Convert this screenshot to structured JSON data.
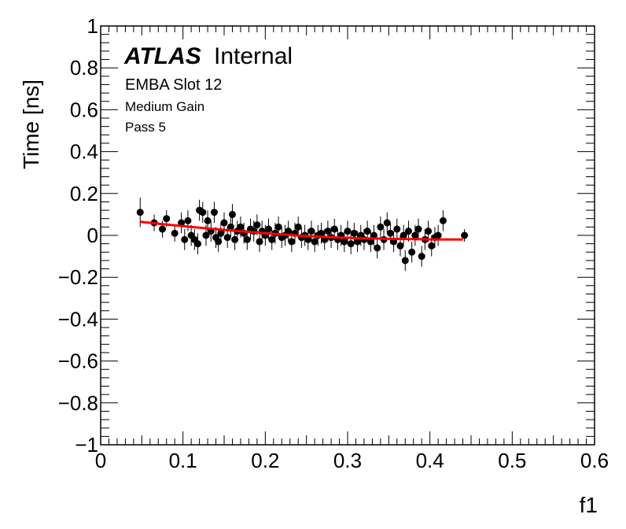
{
  "chart_data": {
    "type": "scatter",
    "title": "",
    "xlabel": "f1",
    "ylabel": "Time [ns]",
    "xlim": [
      0,
      0.6
    ],
    "ylim": [
      -1,
      1
    ],
    "xticks": [
      "0",
      "0.1",
      "0.2",
      "0.3",
      "0.4",
      "0.5",
      "0.6"
    ],
    "yticks": [
      "1",
      "0.8",
      "0.6",
      "0.4",
      "0.2",
      "0",
      "−0.2",
      "−0.4",
      "−0.6",
      "−0.8",
      "−1"
    ],
    "grid": false,
    "annotations": {
      "brand": "ATLAS",
      "status": "Internal",
      "line1": "EMBA Slot 12",
      "line2": "Medium Gain",
      "line3": "Pass 5"
    },
    "fit": {
      "color": "#ff0000",
      "x": [
        0.048,
        0.08,
        0.12,
        0.16,
        0.2,
        0.24,
        0.28,
        0.32,
        0.36,
        0.4,
        0.44
      ],
      "y": [
        0.065,
        0.052,
        0.037,
        0.023,
        0.01,
        -0.001,
        -0.009,
        -0.014,
        -0.017,
        -0.019,
        -0.02
      ]
    },
    "points": {
      "color": "#000000",
      "data": [
        [
          0.048,
          0.11,
          0.07
        ],
        [
          0.065,
          0.06,
          0.04
        ],
        [
          0.075,
          0.03,
          0.04
        ],
        [
          0.08,
          0.08,
          0.04
        ],
        [
          0.09,
          0.01,
          0.04
        ],
        [
          0.098,
          0.06,
          0.05
        ],
        [
          0.102,
          -0.02,
          0.05
        ],
        [
          0.106,
          0.07,
          0.05
        ],
        [
          0.11,
          0.0,
          0.05
        ],
        [
          0.114,
          -0.02,
          0.05
        ],
        [
          0.118,
          -0.04,
          0.05
        ],
        [
          0.12,
          0.12,
          0.05
        ],
        [
          0.124,
          0.11,
          0.05
        ],
        [
          0.128,
          0.0,
          0.05
        ],
        [
          0.13,
          0.07,
          0.05
        ],
        [
          0.134,
          0.02,
          0.05
        ],
        [
          0.138,
          0.11,
          0.05
        ],
        [
          0.14,
          -0.01,
          0.05
        ],
        [
          0.143,
          -0.03,
          0.05
        ],
        [
          0.146,
          0.01,
          0.05
        ],
        [
          0.15,
          0.06,
          0.05
        ],
        [
          0.154,
          -0.01,
          0.05
        ],
        [
          0.158,
          0.04,
          0.05
        ],
        [
          0.16,
          0.1,
          0.05
        ],
        [
          0.163,
          -0.02,
          0.05
        ],
        [
          0.166,
          0.02,
          0.05
        ],
        [
          0.17,
          0.04,
          0.05
        ],
        [
          0.174,
          0.01,
          0.05
        ],
        [
          0.178,
          -0.02,
          0.05
        ],
        [
          0.182,
          0.03,
          0.05
        ],
        [
          0.186,
          0.02,
          0.05
        ],
        [
          0.19,
          0.05,
          0.05
        ],
        [
          0.193,
          -0.03,
          0.05
        ],
        [
          0.196,
          0.02,
          0.05
        ],
        [
          0.2,
          0.0,
          0.05
        ],
        [
          0.204,
          0.03,
          0.05
        ],
        [
          0.208,
          -0.02,
          0.05
        ],
        [
          0.212,
          0.01,
          0.05
        ],
        [
          0.216,
          0.04,
          0.05
        ],
        [
          0.22,
          -0.01,
          0.05
        ],
        [
          0.224,
          0.0,
          0.05
        ],
        [
          0.228,
          0.02,
          0.05
        ],
        [
          0.232,
          -0.03,
          0.05
        ],
        [
          0.236,
          0.01,
          0.05
        ],
        [
          0.24,
          0.04,
          0.05
        ],
        [
          0.244,
          -0.01,
          0.05
        ],
        [
          0.248,
          0.0,
          0.05
        ],
        [
          0.252,
          -0.02,
          0.05
        ],
        [
          0.256,
          0.02,
          0.05
        ],
        [
          0.26,
          -0.03,
          0.05
        ],
        [
          0.264,
          0.0,
          0.05
        ],
        [
          0.268,
          0.01,
          0.05
        ],
        [
          0.272,
          -0.02,
          0.05
        ],
        [
          0.276,
          0.02,
          0.05
        ],
        [
          0.28,
          -0.01,
          0.05
        ],
        [
          0.284,
          0.03,
          0.05
        ],
        [
          0.288,
          -0.02,
          0.05
        ],
        [
          0.292,
          0.0,
          0.05
        ],
        [
          0.296,
          -0.03,
          0.05
        ],
        [
          0.3,
          0.02,
          0.05
        ],
        [
          0.304,
          -0.04,
          0.05
        ],
        [
          0.308,
          0.01,
          0.05
        ],
        [
          0.312,
          -0.03,
          0.05
        ],
        [
          0.316,
          0.0,
          0.05
        ],
        [
          0.32,
          -0.02,
          0.05
        ],
        [
          0.324,
          0.02,
          0.05
        ],
        [
          0.328,
          -0.03,
          0.05
        ],
        [
          0.332,
          0.0,
          0.05
        ],
        [
          0.336,
          -0.06,
          0.05
        ],
        [
          0.34,
          0.04,
          0.05
        ],
        [
          0.344,
          -0.02,
          0.05
        ],
        [
          0.348,
          0.06,
          0.05
        ],
        [
          0.352,
          0.01,
          0.05
        ],
        [
          0.356,
          -0.03,
          0.05
        ],
        [
          0.36,
          0.03,
          0.05
        ],
        [
          0.364,
          -0.05,
          0.05
        ],
        [
          0.368,
          0.0,
          0.05
        ],
        [
          0.37,
          -0.12,
          0.05
        ],
        [
          0.374,
          0.02,
          0.05
        ],
        [
          0.378,
          -0.08,
          0.05
        ],
        [
          0.382,
          0.0,
          0.05
        ],
        [
          0.386,
          0.03,
          0.05
        ],
        [
          0.39,
          -0.1,
          0.05
        ],
        [
          0.394,
          -0.02,
          0.05
        ],
        [
          0.398,
          0.02,
          0.05
        ],
        [
          0.402,
          -0.05,
          0.05
        ],
        [
          0.406,
          -0.01,
          0.05
        ],
        [
          0.41,
          0.0,
          0.05
        ],
        [
          0.416,
          0.07,
          0.05
        ],
        [
          0.442,
          0.0,
          0.03
        ]
      ]
    }
  }
}
